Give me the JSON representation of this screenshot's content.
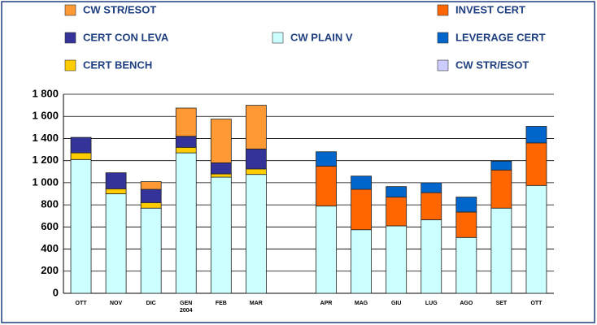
{
  "chart_data": {
    "type": "stacked_bar",
    "categories": [
      "OTT",
      "NOV",
      "DIC",
      "GEN\n2004",
      "FEB",
      "MAR",
      null,
      "APR",
      "MAG",
      "GIU",
      "LUG",
      "AGO",
      "SET",
      "OTT"
    ],
    "series": [
      {
        "name": "CW PLAIN V",
        "color": "#ccffff",
        "values": [
          1210,
          900,
          770,
          1270,
          1050,
          1075,
          null,
          790,
          575,
          610,
          665,
          505,
          770,
          975
        ]
      },
      {
        "name": "CERT BENCH",
        "color": "#ffcc00",
        "values": [
          60,
          45,
          50,
          50,
          30,
          50,
          null,
          null,
          null,
          null,
          null,
          null,
          null,
          null
        ]
      },
      {
        "name": "INVEST CERT",
        "color": "#ff6600",
        "values": [
          null,
          null,
          null,
          null,
          null,
          null,
          null,
          360,
          365,
          260,
          245,
          230,
          345,
          385
        ]
      },
      {
        "name": "CERT CON LEVA",
        "color": "#333399",
        "values": [
          140,
          145,
          120,
          100,
          100,
          180,
          null,
          null,
          null,
          null,
          null,
          null,
          null,
          null
        ]
      },
      {
        "name": "LEVERAGE CERT",
        "color": "#0066cc",
        "values": [
          null,
          null,
          null,
          null,
          null,
          null,
          null,
          130,
          120,
          95,
          90,
          135,
          80,
          150
        ]
      },
      {
        "name": "CW STR/ESOT",
        "color": "#ff9933",
        "values": [
          null,
          null,
          70,
          255,
          395,
          395,
          null,
          null,
          null,
          null,
          null,
          null,
          null,
          null
        ]
      },
      {
        "name": "CW STR/ESOT",
        "color": "#ccccff",
        "values": [
          null,
          null,
          null,
          null,
          null,
          null,
          null,
          null,
          null,
          null,
          null,
          null,
          null,
          null
        ]
      }
    ],
    "ylim": [
      0,
      1800
    ],
    "yticks": [
      0,
      200,
      400,
      600,
      800,
      {
        "value": 1000,
        "label": "1 000"
      },
      {
        "value": 1200,
        "label": "1 200"
      },
      {
        "value": 1400,
        "label": "1 400"
      },
      {
        "value": 1600,
        "label": "1 600"
      },
      {
        "value": 1800,
        "label": "1 800"
      }
    ],
    "grid": true
  }
}
